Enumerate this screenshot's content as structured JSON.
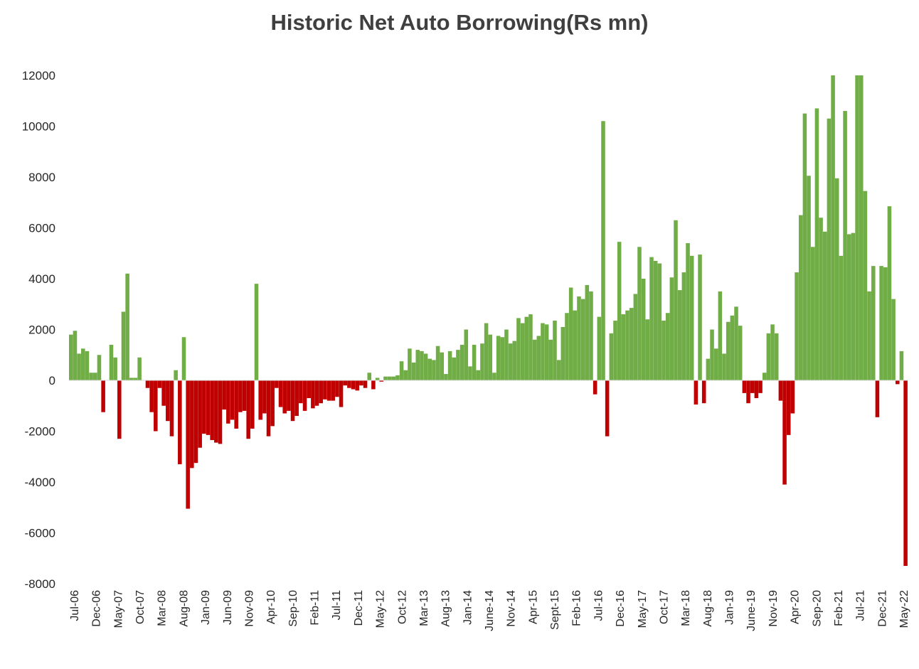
{
  "chart_data": {
    "type": "bar",
    "title": "Historic Net Auto Borrowing(Rs mn)",
    "xlabel": "",
    "ylabel": "",
    "ylim": [
      -8000,
      12000
    ],
    "yticks": [
      12000,
      10000,
      8000,
      6000,
      4000,
      2000,
      0,
      -2000,
      -4000,
      -6000,
      -8000
    ],
    "grid": false,
    "legend": "none",
    "colors": {
      "positive": "#70ad47",
      "negative": "#c00000"
    },
    "x_tick_labels": [
      "Jul-06",
      "Dec-06",
      "May-07",
      "Oct-07",
      "Mar-08",
      "Aug-08",
      "Jan-09",
      "Jun-09",
      "Nov-09",
      "Apr-10",
      "Sep-10",
      "Feb-11",
      "Jul-11",
      "Dec-11",
      "May-12",
      "Oct-12",
      "Mar-13",
      "Aug-13",
      "Jan-14",
      "June-14",
      "Nov-14",
      "Apr-15",
      "Sept-15",
      "Feb-16",
      "Jul-16",
      "Dec-16",
      "May-17",
      "Oct-17",
      "Mar-18",
      "Aug-18",
      "Jan-19",
      "June-19",
      "Nov-19",
      "Apr-20",
      "Sep-20",
      "Feb-21",
      "Jul-21",
      "Dec-21",
      "May-22"
    ],
    "values": [
      1800,
      1950,
      1050,
      1250,
      1150,
      300,
      300,
      1000,
      -1250,
      0,
      1400,
      900,
      -2300,
      2700,
      4200,
      100,
      100,
      900,
      0,
      -300,
      -1250,
      -2000,
      -300,
      -1000,
      -1600,
      -2200,
      400,
      -3300,
      1700,
      -5050,
      -3450,
      -3250,
      -2650,
      -2100,
      -2150,
      -2350,
      -2450,
      -2500,
      -1150,
      -1700,
      -1550,
      -1900,
      -1250,
      -1200,
      -2300,
      -1900,
      3800,
      -1550,
      -1300,
      -2200,
      -1800,
      -300,
      -1050,
      -1300,
      -1200,
      -1600,
      -1400,
      -900,
      -1200,
      -700,
      -1100,
      -1000,
      -900,
      -750,
      -800,
      -800,
      -650,
      -1050,
      -200,
      -300,
      -350,
      -400,
      -200,
      -300,
      300,
      -350,
      100,
      -50,
      150,
      150,
      150,
      200,
      750,
      400,
      1250,
      700,
      1200,
      1150,
      1050,
      850,
      800,
      1350,
      1100,
      250,
      1150,
      900,
      1200,
      1400,
      2000,
      550,
      1400,
      400,
      1450,
      2250,
      1800,
      300,
      1750,
      1700,
      2000,
      1450,
      1550,
      2450,
      2250,
      2500,
      2600,
      1600,
      1750,
      2250,
      2200,
      1600,
      2350,
      800,
      2100,
      2650,
      3650,
      2750,
      3300,
      3200,
      3750,
      3500,
      -550,
      2500,
      10200,
      -2200,
      1850,
      2350,
      5450,
      2600,
      2750,
      2850,
      3400,
      5250,
      4000,
      2400,
      4850,
      4700,
      4600,
      2350,
      2650,
      4050,
      6300,
      3550,
      4250,
      5400,
      4900,
      -950,
      4950,
      -900,
      850,
      2000,
      1250,
      3500,
      1050,
      2300,
      2550,
      2900,
      2150,
      -500,
      -900,
      -500,
      -700,
      -500,
      300,
      1850,
      2200,
      1850,
      -800,
      -4100,
      -2150,
      -1300,
      4250,
      6500,
      10500,
      8050,
      5250,
      10700,
      6400,
      5850,
      10300,
      12000,
      7950,
      4900,
      10600,
      5750,
      5800,
      12000,
      12000,
      7450,
      3500,
      4500,
      -1450,
      4500,
      4450,
      6850,
      3200,
      -150,
      1150,
      -7300
    ]
  }
}
